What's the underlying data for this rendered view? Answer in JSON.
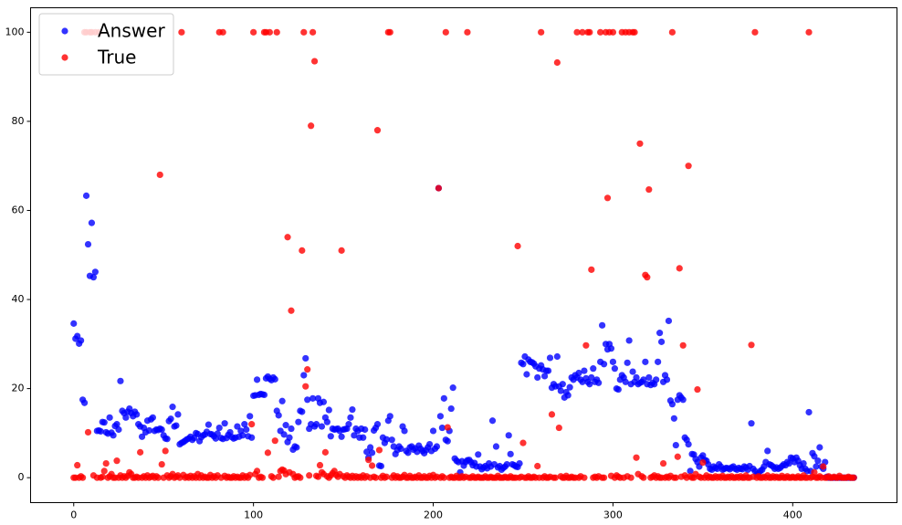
{
  "chart_data": {
    "type": "scatter",
    "x": [
      0,
      1,
      2,
      3,
      4,
      5,
      6,
      7,
      8,
      9,
      10,
      11,
      12,
      13,
      14,
      15,
      16,
      17,
      18,
      19,
      20,
      21,
      22,
      23,
      24,
      25,
      26,
      27,
      28,
      29,
      30,
      31,
      32,
      33,
      34,
      35,
      36,
      37,
      38,
      39,
      40,
      41,
      42,
      43,
      44,
      45,
      46,
      47,
      48,
      49,
      50,
      51,
      52,
      53,
      54,
      55,
      56,
      57,
      58,
      59,
      60,
      61,
      62,
      63,
      64,
      65,
      66,
      67,
      68,
      69,
      70,
      71,
      72,
      73,
      74,
      75,
      76,
      77,
      78,
      79,
      80,
      81,
      82,
      83,
      84,
      85,
      86,
      87,
      88,
      89,
      90,
      91,
      92,
      93,
      94,
      95,
      96,
      97,
      98,
      99,
      100,
      101,
      102,
      103,
      104,
      105,
      106,
      107,
      108,
      109,
      110,
      111,
      112,
      113,
      114,
      115,
      116,
      117,
      118,
      119,
      120,
      121,
      122,
      123,
      124,
      125,
      126,
      127,
      128,
      129,
      130,
      131,
      132,
      133,
      134,
      135,
      136,
      137,
      138,
      139,
      140,
      141,
      142,
      143,
      144,
      145,
      146,
      147,
      148,
      149,
      150,
      151,
      152,
      153,
      154,
      155,
      156,
      157,
      158,
      159,
      160,
      161,
      162,
      163,
      164,
      165,
      166,
      167,
      168,
      169,
      170,
      171,
      172,
      173,
      174,
      175,
      176,
      177,
      178,
      179,
      180,
      181,
      182,
      183,
      184,
      185,
      186,
      187,
      188,
      189,
      190,
      191,
      192,
      193,
      194,
      195,
      196,
      197,
      198,
      199,
      200,
      201,
      202,
      203,
      204,
      205,
      206,
      207,
      208,
      209,
      210,
      211,
      212,
      213,
      214,
      215,
      216,
      217,
      218,
      219,
      220,
      221,
      222,
      223,
      224,
      225,
      226,
      227,
      228,
      229,
      230,
      231,
      232,
      233,
      234,
      235,
      236,
      237,
      238,
      239,
      240,
      241,
      242,
      243,
      244,
      245,
      246,
      247,
      248,
      249,
      250,
      251,
      252,
      253,
      254,
      255,
      256,
      257,
      258,
      259,
      260,
      261,
      262,
      263,
      264,
      265,
      266,
      267,
      268,
      269,
      270,
      271,
      272,
      273,
      274,
      275,
      276,
      277,
      278,
      279,
      280,
      281,
      282,
      283,
      284,
      285,
      286,
      287,
      288,
      289,
      290,
      291,
      292,
      293,
      294,
      295,
      296,
      297,
      298,
      299,
      300,
      301,
      302,
      303,
      304,
      305,
      306,
      307,
      308,
      309,
      310,
      311,
      312,
      313,
      314,
      315,
      316,
      317,
      318,
      319,
      320,
      321,
      322,
      323,
      324,
      325,
      326,
      327,
      328,
      329,
      330,
      331,
      332,
      333,
      334,
      335,
      336,
      337,
      338,
      339,
      340,
      341,
      342,
      343,
      344,
      345,
      346,
      347,
      348,
      349,
      350,
      351,
      352,
      353,
      354,
      355,
      356,
      357,
      358,
      359,
      360,
      361,
      362,
      363,
      364,
      365,
      366,
      367,
      368,
      369,
      370,
      371,
      372,
      373,
      374,
      375,
      376,
      377,
      378,
      379,
      380,
      381,
      382,
      383,
      384,
      385,
      386,
      387,
      388,
      389,
      390,
      391,
      392,
      393,
      394,
      395,
      396,
      397,
      398,
      399,
      400,
      401,
      402,
      403,
      404,
      405,
      406,
      407,
      408,
      409,
      410,
      411,
      412,
      413,
      414,
      415,
      416,
      417,
      418,
      419,
      420,
      421,
      422,
      423,
      424,
      425,
      426,
      427,
      428,
      429,
      430,
      431,
      432,
      433,
      434
    ],
    "series": [
      {
        "name": "Answer",
        "color": "#0000ff",
        "values": [
          34.6,
          31.2,
          31.8,
          30.1,
          30.8,
          17.5,
          16.8,
          63.3,
          52.4,
          45.3,
          57.2,
          45.0,
          46.2,
          10.5,
          10.6,
          10.4,
          12.5,
          12.4,
          10.2,
          9.9,
          13.5,
          10.1,
          9.5,
          11.6,
          12.0,
          10.8,
          21.7,
          15.0,
          14.5,
          13.5,
          14.8,
          15.5,
          14.5,
          13.8,
          14.8,
          14.2,
          12.0,
          11.5,
          9.2,
          11.2,
          10.2,
          12.8,
          10.6,
          13.1,
          13.5,
          10.5,
          10.8,
          10.7,
          11.0,
          10.8,
          9.5,
          8.8,
          8.7,
          12.7,
          13.2,
          15.9,
          11.5,
          11.7,
          14.2,
          7.5,
          7.8,
          8.0,
          8.3,
          8.6,
          8.8,
          9.2,
          8.5,
          8.9,
          10.0,
          9.8,
          8.2,
          9.1,
          9.5,
          9.7,
          10.3,
          11.9,
          9.8,
          9.7,
          9.3,
          8.8,
          9.9,
          11.2,
          8.9,
          8.7,
          12.2,
          8.9,
          9.6,
          10.2,
          9.1,
          8.8,
          9.0,
          11.5,
          9.2,
          10.5,
          9.5,
          12.0,
          10.8,
          9.3,
          13.8,
          9.0,
          18.4,
          18.5,
          22.0,
          18.6,
          18.8,
          18.7,
          18.6,
          22.3,
          22.7,
          22.2,
          21.9,
          22.5,
          22.1,
          15.0,
          14.0,
          10.5,
          17.2,
          9.7,
          11.8,
          8.0,
          9.0,
          11.0,
          6.3,
          7.0,
          6.8,
          12.5,
          15.0,
          14.8,
          23.0,
          26.8,
          17.5,
          11.0,
          12.0,
          17.8,
          11.5,
          12.0,
          17.8,
          16.8,
          11.5,
          17.0,
          13.5,
          12.5,
          15.2,
          9.3,
          11.0,
          10.8,
          10.9,
          11.0,
          10.5,
          9.2,
          10.8,
          10.9,
          11.0,
          12.0,
          13.5,
          15.3,
          9.5,
          11.0,
          10.5,
          9.0,
          11.0,
          9.0,
          10.8,
          5.8,
          4.5,
          6.8,
          5.6,
          10.6,
          11.2,
          12.0,
          2.7,
          2.6,
          9.0,
          7.8,
          8.6,
          12.8,
          13.8,
          8.5,
          7.0,
          5.3,
          6.2,
          7.0,
          6.5,
          11.5,
          10.5,
          6.0,
          5.6,
          6.8,
          7.0,
          6.3,
          6.6,
          5.8,
          7.2,
          6.5,
          6.0,
          5.5,
          6.2,
          6.8,
          7.5,
          6.0,
          10.5,
          6.5,
          7.0,
          65.0,
          13.8,
          11.2,
          17.8,
          8.5,
          8.2,
          10.5,
          15.5,
          20.2,
          4.3,
          3.8,
          3.5,
          1.2,
          3.7,
          2.7,
          3.5,
          3.9,
          4.0,
          3.5,
          2.8,
          3.3,
          2.5,
          5.2,
          2.5,
          1.9,
          2.3,
          2.6,
          2.1,
          3.2,
          2.5,
          12.8,
          3.0,
          7.0,
          2.3,
          2.6,
          1.8,
          2.2,
          2.5,
          3.0,
          9.5,
          5.3,
          3.0,
          2.8,
          2.5,
          2.4,
          3.2,
          25.8,
          25.5,
          27.2,
          23.2,
          26.5,
          26.0,
          25.9,
          25.6,
          25.0,
          22.5,
          24.5,
          25.2,
          24.3,
          22.8,
          24.0,
          24.0,
          26.9,
          20.2,
          21.0,
          20.5,
          27.2,
          20.5,
          19.5,
          21.0,
          18.0,
          19.2,
          18.5,
          20.3,
          22.5,
          22.0,
          23.0,
          22.5,
          23.5,
          22.0,
          21.5,
          24.0,
          22.3,
          21.5,
          21.0,
          22.5,
          24.5,
          21.5,
          22.0,
          21.3,
          26.0,
          34.2,
          25.5,
          30.0,
          28.8,
          30.0,
          29.0,
          26.0,
          24.5,
          20.0,
          19.8,
          22.0,
          23.0,
          22.5,
          21.5,
          25.8,
          30.8,
          21.0,
          23.8,
          21.5,
          22.5,
          21.0,
          21.3,
          21.5,
          22.0,
          26.0,
          21.0,
          22.5,
          20.8,
          21.3,
          21.0,
          22.0,
          26.0,
          32.5,
          30.5,
          21.5,
          23.0,
          22.0,
          35.2,
          17.3,
          16.5,
          13.3,
          7.3,
          17.5,
          18.5,
          18.0,
          17.5,
          9.0,
          8.5,
          7.5,
          1.5,
          5.3,
          5.2,
          4.2,
          3.5,
          2.5,
          4.5,
          5.0,
          4.0,
          3.8,
          3.0,
          2.0,
          1.8,
          2.5,
          2.2,
          2.0,
          3.0,
          2.5,
          1.8,
          2.0,
          2.2,
          2.1,
          1.9,
          2.3,
          2.5,
          2.0,
          1.8,
          2.2,
          2.0,
          1.9,
          2.5,
          2.3,
          1.8,
          2.6,
          12.2,
          2.0,
          1.5,
          0.8,
          1.0,
          1.5,
          1.8,
          2.5,
          3.5,
          6.0,
          3.0,
          2.8,
          2.5,
          2.0,
          2.3,
          2.0,
          2.2,
          2.6,
          3.0,
          2.8,
          3.5,
          3.2,
          4.5,
          4.3,
          3.5,
          4.5,
          3.8,
          2.8,
          2.0,
          3.2,
          2.0,
          1.5,
          14.7,
          1.5,
          5.5,
          4.8,
          2.5,
          3.8,
          6.8,
          2.5,
          2.0,
          3.5,
          0.2,
          0,
          0,
          0,
          0,
          0,
          0,
          0,
          0,
          0,
          0,
          0,
          0,
          0,
          0,
          0
        ]
      },
      {
        "name": "True",
        "color": "#ff0000",
        "values": [
          0,
          0,
          2.8,
          0,
          0.3,
          0,
          100,
          100,
          10.2,
          100,
          100,
          0.5,
          100,
          0,
          100,
          0,
          0.2,
          1.5,
          3.2,
          0,
          0.3,
          0.8,
          0,
          0,
          3.8,
          0,
          0.5,
          0,
          0.3,
          0,
          0.4,
          1.2,
          0.8,
          0,
          0,
          0.2,
          0,
          5.7,
          0,
          0.3,
          0,
          0.5,
          0,
          0.2,
          0.4,
          0,
          0.3,
          0,
          68.0,
          3.0,
          0,
          6.0,
          0.5,
          0,
          0.3,
          0.8,
          0,
          0.2,
          0.5,
          0,
          100,
          0.6,
          0,
          0.2,
          0,
          0.4,
          0,
          0.3,
          0,
          0.8,
          0,
          0.5,
          0,
          0.2,
          0,
          0,
          0.6,
          0,
          0.3,
          0,
          0.5,
          100,
          0,
          100,
          0.4,
          0,
          0.2,
          0,
          0,
          0.3,
          0,
          0.2,
          0,
          0,
          0.5,
          0,
          0.3,
          0,
          0.6,
          12.0,
          100,
          0.8,
          1.5,
          0,
          0.2,
          0,
          100,
          100,
          5.6,
          100,
          0.3,
          0,
          8.3,
          100,
          0.2,
          1.5,
          1.8,
          1.6,
          0.8,
          54.0,
          1.2,
          37.5,
          0.8,
          0,
          0.2,
          0.3,
          0,
          51.0,
          100,
          20.5,
          24.3,
          0.5,
          79.0,
          100,
          93.5,
          0.4,
          0.2,
          2.8,
          1.2,
          0.8,
          5.7,
          0.3,
          0,
          0.5,
          1.0,
          1.5,
          0.6,
          0.2,
          0.8,
          51.0,
          0.3,
          0,
          0.5,
          0.2,
          0,
          0.4,
          0,
          0.3,
          0,
          0.2,
          0,
          0.5,
          0,
          0.3,
          4.0,
          0,
          2.7,
          0.2,
          0,
          78.0,
          6.2,
          0,
          0.4,
          0,
          0.2,
          100,
          100,
          0,
          0.5,
          0,
          0.3,
          0,
          0,
          0.2,
          0.6,
          0,
          0,
          0.4,
          0,
          0,
          0.2,
          0,
          0.5,
          0,
          0,
          0.3,
          0,
          0,
          0.4,
          0,
          0.6,
          0,
          0.2,
          65.0,
          0,
          0.3,
          0,
          100,
          11.3,
          0,
          0.2,
          0,
          0,
          0.4,
          0,
          0,
          0.3,
          0,
          0.2,
          100,
          0,
          0,
          0.3,
          0,
          0,
          0.2,
          0,
          0,
          0,
          0.3,
          0,
          0,
          0.2,
          0,
          0,
          0,
          0.4,
          0,
          0,
          0,
          0.2,
          0,
          0,
          0.3,
          0,
          0,
          0,
          52.0,
          0,
          0.2,
          7.8,
          0,
          0,
          0.3,
          0,
          0,
          0.2,
          0,
          2.6,
          0,
          100,
          0,
          0.3,
          0,
          0,
          0.2,
          14.2,
          0,
          0,
          93.2,
          11.2,
          0.3,
          0,
          0,
          0.4,
          0,
          0,
          0.2,
          0,
          0,
          100,
          0,
          0.3,
          100,
          0,
          29.7,
          100,
          100,
          46.7,
          0,
          0.2,
          0,
          0.3,
          100,
          0,
          0,
          100,
          62.8,
          100,
          0.4,
          100,
          0,
          0.5,
          0.2,
          0,
          100,
          0,
          100,
          0.3,
          100,
          0,
          100,
          100,
          4.5,
          0.8,
          75.0,
          0.3,
          0,
          45.5,
          45.0,
          64.7,
          0,
          0.2,
          0.5,
          0,
          0.3,
          0,
          0,
          3.2,
          0,
          0.2,
          0,
          0.4,
          100,
          0,
          0,
          4.7,
          47.0,
          0.2,
          29.7,
          0.5,
          0,
          70.0,
          0.3,
          0,
          0,
          0.8,
          19.8,
          0.2,
          0,
          3.4,
          0,
          0.5,
          0,
          0.2,
          0,
          0,
          0.3,
          0,
          0.2,
          0,
          0.4,
          0,
          0,
          0.2,
          0,
          0.3,
          0,
          0,
          0.2,
          0,
          0.3,
          0,
          0,
          0.5,
          0,
          0,
          29.8,
          0.2,
          100,
          0,
          0.3,
          0,
          0,
          0.2,
          0,
          0.5,
          0,
          0,
          0.3,
          0,
          0.2,
          0,
          0,
          0.4,
          0,
          0,
          0.3,
          0,
          0,
          0.2,
          0,
          0,
          0.3,
          0,
          0,
          0.5,
          0,
          0,
          100,
          0,
          0.2,
          1.2,
          0,
          0,
          0.3,
          0,
          2.5,
          0,
          0,
          0.3,
          0,
          0,
          0.2,
          0,
          0,
          0.4,
          0,
          0,
          0,
          0,
          0.2,
          0,
          0,
          0
        ]
      }
    ],
    "xlim": [
      -24,
      458
    ],
    "ylim": [
      -5.6,
      105.5
    ],
    "xticks": [
      0,
      100,
      200,
      300,
      400
    ],
    "yticks": [
      0,
      20,
      40,
      60,
      80,
      100
    ],
    "legend": "upper left"
  }
}
